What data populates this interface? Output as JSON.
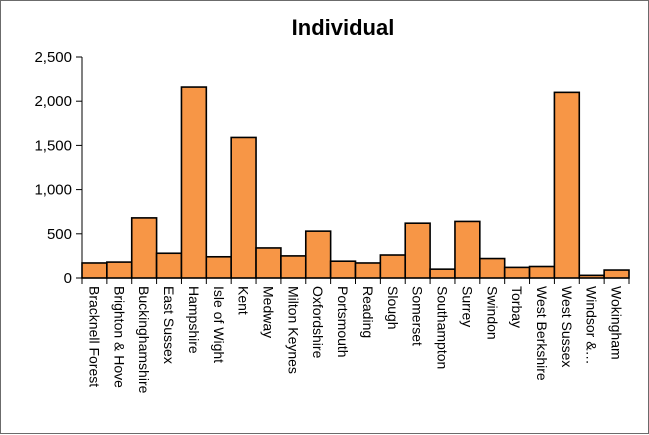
{
  "chart_data": {
    "type": "bar",
    "title": "Individual",
    "xlabel": "",
    "ylabel": "",
    "ylim": [
      0,
      2500
    ],
    "yticks": [
      0,
      500,
      1000,
      1500,
      2000,
      2500
    ],
    "ytick_labels": [
      "0",
      "500",
      "1,000",
      "1,500",
      "2,000",
      "2,500"
    ],
    "grid": false,
    "legend": "none",
    "bar_color": "#f79646",
    "bar_edge_color": "#000000",
    "categories": [
      "Bracknell Forest",
      "Brighton & Hove",
      "Buckinghamshire",
      "East Sussex",
      "Hampshire",
      "Isle of Wight",
      "Kent",
      "Medway",
      "Milton Keynes",
      "Oxfordshire",
      "Portsmouth",
      "Reading",
      "Slough",
      "Somerset",
      "Southampton",
      "Surrey",
      "Swindon",
      "Torbay",
      "West Berkshire",
      "West Sussex",
      "Windsor &…",
      "Wokingham"
    ],
    "values": [
      170,
      180,
      680,
      280,
      2160,
      240,
      1590,
      340,
      250,
      530,
      190,
      170,
      260,
      620,
      100,
      640,
      220,
      120,
      130,
      2100,
      30,
      90
    ]
  }
}
